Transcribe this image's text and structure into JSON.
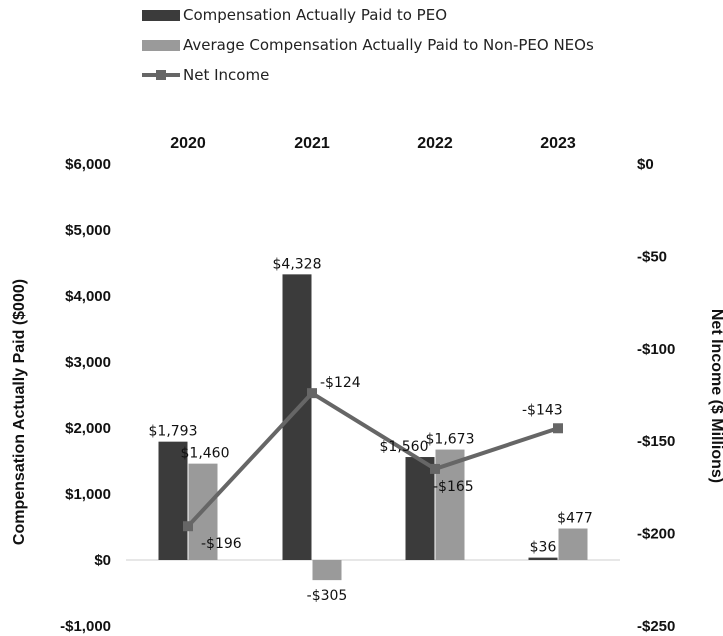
{
  "chart_data": {
    "type": "bar",
    "categories": [
      "2020",
      "2021",
      "2022",
      "2023"
    ],
    "series": [
      {
        "name": "Compensation Actually Paid to PEO",
        "type": "bar",
        "axis": "left",
        "color": "#3b3b3b",
        "values": [
          1793,
          4328,
          1560,
          36
        ],
        "labels": [
          "$1,793",
          "$4,328",
          "$1,560",
          "$36"
        ]
      },
      {
        "name": "Average Compensation Actually Paid to Non-PEO NEOs",
        "type": "bar",
        "axis": "left",
        "color": "#9a9a9a",
        "values": [
          1460,
          -305,
          1673,
          477
        ],
        "labels": [
          "$1,460",
          "-$305",
          "$1,673",
          "$477"
        ]
      },
      {
        "name": "Net Income",
        "type": "line",
        "axis": "right",
        "color": "#666666",
        "values": [
          -196,
          -124,
          -165,
          -143
        ],
        "labels": [
          "-$196",
          "-$124",
          "-$165",
          "-$143"
        ]
      }
    ],
    "ylabel": "Compensation Actually Paid ($000)",
    "y2label": "Net Income ($ Millions)",
    "ylim": [
      -1000,
      6000
    ],
    "y2lim": [
      -250,
      0
    ],
    "yticks": [
      -1000,
      0,
      1000,
      2000,
      3000,
      4000,
      5000,
      6000
    ],
    "yticklabels": [
      "-$1,000",
      "$0",
      "$1,000",
      "$2,000",
      "$3,000",
      "$4,000",
      "$5,000",
      "$6,000"
    ],
    "y2ticks": [
      -250,
      -200,
      -150,
      -100,
      -50,
      0
    ],
    "y2ticklabels": [
      "-$250",
      "-$200",
      "-$150",
      "-$100",
      "-$50",
      "$0"
    ],
    "grid": false,
    "legend_position": "top-left",
    "category_labels_position": "top"
  }
}
